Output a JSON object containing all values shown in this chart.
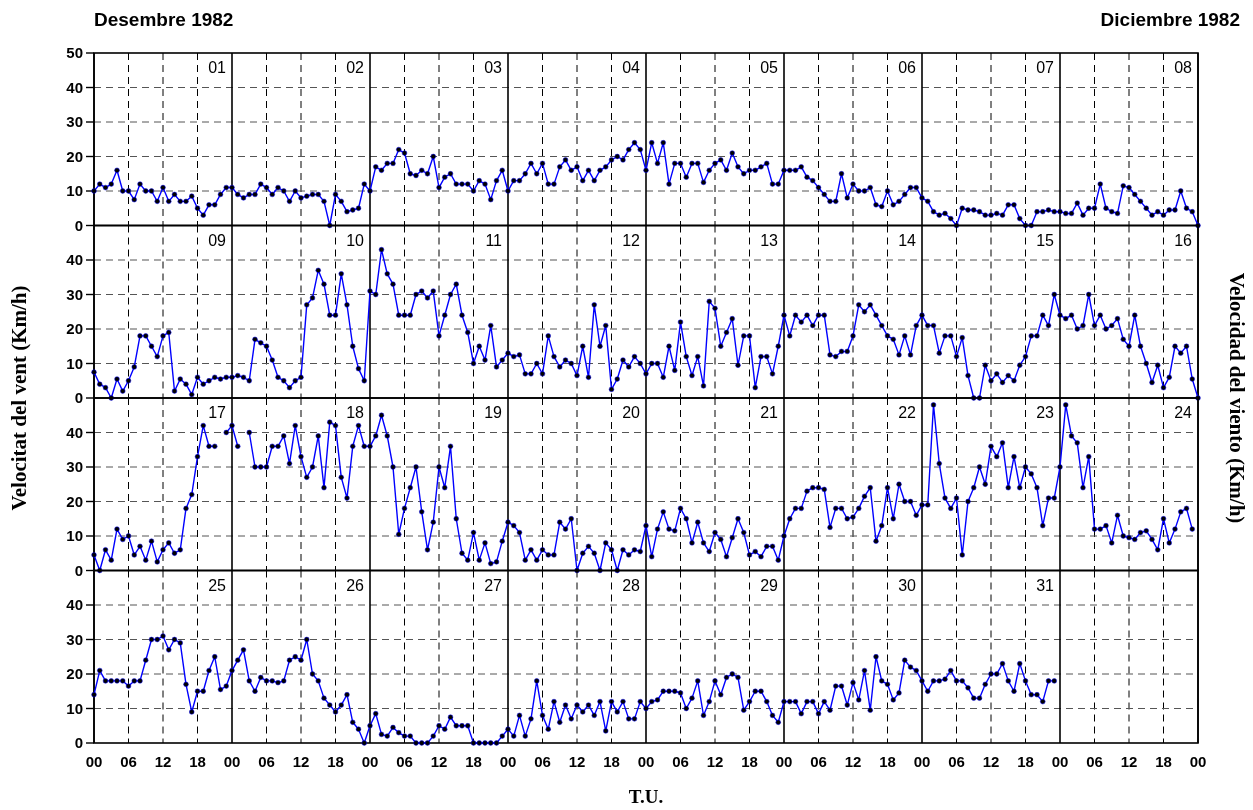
{
  "chart_data": [
    {
      "type": "line",
      "title": "Desembre 1982",
      "subtitle": "Diciembre 1982",
      "ylabel": "Velocitat del vent (Km/h)",
      "y2label": "Velocidad del viento (Km/h)",
      "annotations": [
        "01",
        "02",
        "03",
        "04",
        "05",
        "06",
        "07",
        "08"
      ],
      "xlim": [
        0,
        192
      ],
      "ylim": [
        0,
        50
      ],
      "yticks": [
        0,
        10,
        20,
        30,
        40,
        50
      ],
      "xticks": [
        0,
        6,
        12,
        18,
        24,
        30,
        36,
        42,
        48,
        54,
        60,
        66,
        72,
        78,
        84,
        90,
        96,
        102,
        108,
        114,
        120,
        126,
        132,
        138,
        144,
        150,
        156,
        162,
        168,
        174,
        180,
        186,
        192
      ],
      "tick_labels": "y",
      "grid": true,
      "marker": "circle",
      "line_style": "solid",
      "series": [
        {
          "color": "#0000ff",
          "x": [
            0,
            1,
            2,
            3,
            4,
            5,
            6,
            7,
            8,
            9,
            10,
            11,
            12,
            13,
            14,
            15,
            16,
            17,
            18,
            19,
            20,
            21,
            22,
            23,
            24,
            25,
            26,
            27,
            28,
            29,
            30,
            31,
            32,
            33,
            34,
            35,
            36,
            37,
            38,
            39,
            40,
            41,
            42,
            43,
            44,
            45,
            46,
            47,
            48,
            49,
            50,
            51,
            52,
            53,
            54,
            55,
            56,
            57,
            58,
            59,
            60,
            61,
            62,
            63,
            64,
            65,
            66,
            67,
            68,
            69,
            70,
            71,
            72,
            73,
            74,
            75,
            76,
            77,
            78,
            79,
            80,
            81,
            82,
            83,
            84,
            85,
            86,
            87,
            88,
            89,
            90,
            91,
            92,
            93,
            94,
            95,
            96,
            97,
            98,
            99,
            100,
            101,
            102,
            103,
            104,
            105,
            106,
            107,
            108,
            109,
            110,
            111,
            112,
            113,
            114,
            115,
            116,
            117,
            118,
            119,
            120,
            121,
            122,
            123,
            124,
            125,
            126,
            127,
            128,
            129,
            130,
            131,
            132,
            133,
            134,
            135,
            136,
            137,
            138,
            139,
            140,
            141,
            142,
            143,
            144,
            145,
            146,
            147,
            148,
            149,
            150,
            151,
            152,
            153,
            154,
            155,
            156,
            157,
            158,
            159,
            160,
            161,
            162,
            163,
            164,
            165,
            166,
            167,
            168,
            169,
            170,
            171,
            172,
            173,
            174,
            175,
            176,
            177,
            178,
            179,
            180,
            181,
            182,
            183,
            184,
            185,
            186,
            187,
            188,
            189,
            190,
            191,
            192
          ],
          "values": [
            10,
            12,
            11,
            12,
            16,
            10,
            10,
            7.5,
            12,
            10,
            10,
            7,
            11,
            7,
            9,
            7,
            7,
            8.5,
            5,
            3,
            6,
            6,
            9,
            11,
            11,
            9,
            8,
            9,
            9,
            12,
            11,
            9,
            11,
            10,
            7,
            10,
            8,
            8.5,
            9,
            9,
            7,
            0,
            9,
            7,
            4,
            4.5,
            5,
            12,
            10,
            17,
            16,
            18,
            18,
            22,
            21,
            15,
            14.5,
            16,
            15,
            20,
            11,
            14,
            15,
            12,
            12,
            12,
            10,
            13,
            12,
            7.5,
            13,
            16,
            10,
            13,
            13,
            15,
            18,
            15,
            18,
            12,
            12,
            17,
            19,
            16,
            17,
            13,
            16,
            13,
            16,
            17,
            19,
            20,
            19,
            22,
            24,
            22,
            16,
            24,
            18,
            24,
            12,
            18,
            18,
            14,
            18,
            18,
            12.5,
            16,
            18,
            19,
            16,
            21,
            17,
            15,
            16,
            16,
            17,
            18,
            12,
            12,
            16,
            16,
            16,
            17,
            14,
            13,
            11,
            9,
            7,
            7,
            15,
            8,
            12,
            10,
            10,
            11,
            6,
            5.5,
            10,
            6,
            7,
            9,
            11,
            11,
            8,
            7,
            4,
            3,
            3.5,
            2,
            0,
            5,
            4.5,
            4.5,
            4,
            3,
            3,
            3.5,
            3,
            6,
            6,
            2,
            0,
            0,
            4,
            4,
            4.5,
            4,
            4,
            3.5,
            3.5,
            6.5,
            3,
            5,
            5,
            12,
            5,
            4,
            3.5,
            11.5,
            11,
            9,
            7,
            5,
            3,
            4,
            3,
            4.5,
            4.5,
            10,
            5,
            4,
            0
          ]
        }
      ]
    },
    {
      "type": "line",
      "annotations": [
        "09",
        "10",
        "11",
        "12",
        "13",
        "14",
        "15",
        "16"
      ],
      "xlim": [
        0,
        192
      ],
      "ylim": [
        0,
        50
      ],
      "yticks": [
        0,
        10,
        20,
        30,
        40
      ],
      "xticks": [
        0,
        6,
        12,
        18,
        24,
        30,
        36,
        42,
        48,
        54,
        60,
        66,
        72,
        78,
        84,
        90,
        96,
        102,
        108,
        114,
        120,
        126,
        132,
        138,
        144,
        150,
        156,
        162,
        168,
        174,
        180,
        186,
        192
      ],
      "tick_labels": "y",
      "grid": true,
      "marker": "circle",
      "line_style": "solid",
      "series": [
        {
          "color": "#0000ff",
          "x": [
            0,
            1,
            2,
            3,
            4,
            5,
            6,
            7,
            8,
            9,
            10,
            11,
            12,
            13,
            14,
            15,
            16,
            17,
            18,
            19,
            20,
            21,
            22,
            23,
            24,
            25,
            26,
            27,
            28,
            29,
            30,
            31,
            32,
            33,
            34,
            35,
            36,
            37,
            38,
            39,
            40,
            41,
            42,
            43,
            44,
            45,
            46,
            47,
            48,
            49,
            50,
            51,
            52,
            53,
            54,
            55,
            56,
            57,
            58,
            59,
            60,
            61,
            62,
            63,
            64,
            65,
            66,
            67,
            68,
            69,
            70,
            71,
            72,
            73,
            74,
            75,
            76,
            77,
            78,
            79,
            80,
            81,
            82,
            83,
            84,
            85,
            86,
            87,
            88,
            89,
            90,
            91,
            92,
            93,
            94,
            95,
            96,
            97,
            98,
            99,
            100,
            101,
            102,
            103,
            104,
            105,
            106,
            107,
            108,
            109,
            110,
            111,
            112,
            113,
            114,
            115,
            116,
            117,
            118,
            119,
            120,
            121,
            122,
            123,
            124,
            125,
            126,
            127,
            128,
            129,
            130,
            131,
            132,
            133,
            134,
            135,
            136,
            137,
            138,
            139,
            140,
            141,
            142,
            143,
            144,
            145,
            146,
            147,
            148,
            149,
            150,
            151,
            152,
            153,
            154,
            155,
            156,
            157,
            158,
            159,
            160,
            161,
            162,
            163,
            164,
            165,
            166,
            167,
            168,
            169,
            170,
            171,
            172,
            173,
            174,
            175,
            176,
            177,
            178,
            179,
            180,
            181,
            182,
            183,
            184,
            185,
            186,
            187,
            188,
            189,
            190,
            191,
            192
          ],
          "values": [
            7.5,
            4,
            3,
            0,
            5.5,
            2,
            5,
            9,
            18,
            18,
            15,
            12,
            18,
            19,
            2,
            5.5,
            4,
            1,
            6,
            4,
            5,
            6,
            5.5,
            6,
            6,
            6.5,
            6,
            5,
            17,
            16,
            15,
            11,
            6,
            5,
            3,
            5,
            6,
            27,
            29,
            37,
            33,
            24,
            24,
            36,
            27,
            15,
            8.5,
            5,
            31,
            30,
            43,
            36,
            33,
            24,
            24,
            24,
            30,
            31,
            29,
            31,
            18,
            24,
            30,
            33,
            24,
            19,
            10,
            15,
            11,
            21,
            9,
            11,
            13,
            12,
            12.5,
            7,
            7,
            10,
            7,
            18,
            12,
            9,
            11,
            10,
            6.5,
            15,
            6,
            27,
            15,
            21,
            2.5,
            5.5,
            11,
            9,
            12,
            10,
            7,
            10,
            10,
            6,
            15,
            8,
            22,
            12,
            6.5,
            12,
            3.5,
            28,
            26,
            15,
            19,
            23,
            9.5,
            18,
            18,
            3,
            12,
            12,
            7,
            15,
            24,
            18,
            24,
            22,
            24,
            21,
            24,
            24,
            12.5,
            12,
            13.5,
            13.5,
            18,
            27,
            25,
            27,
            24,
            21,
            18,
            17,
            12.5,
            18,
            12.5,
            21,
            24,
            21,
            21,
            13,
            18,
            18,
            12,
            17.5,
            6.5,
            0,
            0,
            9.5,
            5,
            7,
            4.5,
            6.5,
            5,
            9.5,
            12,
            18,
            18,
            24,
            21,
            30,
            24,
            23,
            24,
            20,
            21,
            30,
            21,
            24,
            20,
            21,
            23,
            17,
            15,
            24,
            15,
            10,
            4.5,
            9.5,
            3,
            6,
            15,
            13,
            15,
            5.5,
            0
          ]
        }
      ]
    },
    {
      "type": "line",
      "annotations": [
        "17",
        "18",
        "19",
        "20",
        "21",
        "22",
        "23",
        "24"
      ],
      "xlim": [
        0,
        192
      ],
      "ylim": [
        0,
        50
      ],
      "yticks": [
        0,
        10,
        20,
        30,
        40
      ],
      "xticks": [
        0,
        6,
        12,
        18,
        24,
        30,
        36,
        42,
        48,
        54,
        60,
        66,
        72,
        78,
        84,
        90,
        96,
        102,
        108,
        114,
        120,
        126,
        132,
        138,
        144,
        150,
        156,
        162,
        168,
        174,
        180,
        186,
        192
      ],
      "tick_labels": "y",
      "grid": true,
      "marker": "circle",
      "line_style": "solid",
      "series": [
        {
          "color": "#0000ff",
          "x": [
            0,
            1,
            2,
            3,
            4,
            5,
            6,
            7,
            8,
            9,
            10,
            11,
            12,
            13,
            14,
            15,
            16,
            17,
            18,
            19,
            20,
            21,
            22,
            23,
            24,
            25,
            26,
            27,
            28,
            29,
            30,
            31,
            32,
            33,
            34,
            35,
            36,
            37,
            38,
            39,
            40,
            41,
            42,
            43,
            44,
            45,
            46,
            47,
            48,
            49,
            50,
            51,
            52,
            53,
            54,
            55,
            56,
            57,
            58,
            59,
            60,
            61,
            62,
            63,
            64,
            65,
            66,
            67,
            68,
            69,
            70,
            71,
            72,
            73,
            74,
            75,
            76,
            77,
            78,
            79,
            80,
            81,
            82,
            83,
            84,
            85,
            86,
            87,
            88,
            89,
            90,
            91,
            92,
            93,
            94,
            95,
            96,
            97,
            98,
            99,
            100,
            101,
            102,
            103,
            104,
            105,
            106,
            107,
            108,
            109,
            110,
            111,
            112,
            113,
            114,
            115,
            116,
            117,
            118,
            119,
            120,
            121,
            122,
            123,
            124,
            125,
            126,
            127,
            128,
            129,
            130,
            131,
            132,
            133,
            134,
            135,
            136,
            137,
            138,
            139,
            140,
            141,
            142,
            143,
            144,
            145,
            146,
            147,
            148,
            149,
            150,
            151,
            152,
            153,
            154,
            155,
            156,
            157,
            158,
            159,
            160,
            161,
            162,
            163,
            164,
            165,
            166,
            167,
            168,
            169,
            170,
            171,
            172,
            173,
            174,
            175,
            176,
            177,
            178,
            179,
            180,
            181,
            182,
            183,
            184,
            185,
            186,
            187,
            188,
            189,
            190,
            191
          ],
          "values": [
            4.5,
            0,
            6,
            3,
            12,
            9,
            10,
            4.5,
            7,
            3,
            8.5,
            2.5,
            6,
            8,
            5,
            6,
            18,
            22,
            33,
            42,
            36,
            36,
            null,
            40,
            42,
            36,
            null,
            40,
            30,
            30,
            30,
            36,
            36,
            39,
            31,
            42,
            33,
            27,
            30,
            39,
            24,
            43,
            42,
            27,
            21,
            36,
            42,
            36,
            36,
            39,
            45,
            39,
            30,
            10.5,
            18,
            24,
            30,
            17,
            6,
            14,
            30,
            24,
            36,
            15,
            5,
            3,
            11,
            3,
            8,
            2,
            2.5,
            8.5,
            14,
            13,
            11,
            3,
            6,
            3,
            6,
            4.5,
            4.5,
            14,
            12,
            15,
            0,
            5,
            7,
            5,
            0,
            8,
            6,
            0,
            6,
            4.5,
            6,
            5.5,
            13,
            4,
            12,
            17,
            12,
            11.5,
            18,
            15,
            8,
            14,
            8,
            5.5,
            11,
            9,
            4,
            9.5,
            15,
            11,
            4.5,
            5.5,
            4,
            7,
            7,
            3,
            10,
            15,
            18,
            18,
            23,
            24,
            24,
            23.5,
            12.5,
            18,
            18,
            15,
            15.5,
            18,
            21.5,
            24,
            8.5,
            13,
            24,
            15,
            25,
            20,
            20,
            16,
            19,
            19,
            48,
            31,
            21,
            18,
            21,
            4.5,
            20,
            24,
            30,
            25,
            36,
            33,
            37,
            24,
            33,
            24,
            30,
            28,
            24,
            13,
            21,
            21,
            30,
            48,
            39,
            37,
            24,
            33,
            12,
            12,
            13,
            8,
            16,
            10,
            9.5,
            9,
            11,
            11.5,
            9,
            6,
            15,
            8,
            12,
            17,
            18,
            12
          ]
        }
      ]
    },
    {
      "type": "line",
      "xlabel": "T.U.",
      "annotations": [
        "25",
        "26",
        "27",
        "28",
        "29",
        "30",
        "31"
      ],
      "xlim": [
        0,
        192
      ],
      "ylim": [
        0,
        50
      ],
      "yticks": [
        0,
        10,
        20,
        30,
        40
      ],
      "xticks": [
        {
          "value": 0,
          "label": "00"
        },
        {
          "value": 6,
          "label": "06"
        },
        {
          "value": 12,
          "label": "12"
        },
        {
          "value": 18,
          "label": "18"
        },
        {
          "value": 24,
          "label": "00"
        },
        {
          "value": 30,
          "label": "06"
        },
        {
          "value": 36,
          "label": "12"
        },
        {
          "value": 42,
          "label": "18"
        },
        {
          "value": 48,
          "label": "00"
        },
        {
          "value": 54,
          "label": "06"
        },
        {
          "value": 60,
          "label": "12"
        },
        {
          "value": 66,
          "label": "18"
        },
        {
          "value": 72,
          "label": "00"
        },
        {
          "value": 78,
          "label": "06"
        },
        {
          "value": 84,
          "label": "12"
        },
        {
          "value": 90,
          "label": "18"
        },
        {
          "value": 96,
          "label": "00"
        },
        {
          "value": 102,
          "label": "06"
        },
        {
          "value": 108,
          "label": "12"
        },
        {
          "value": 114,
          "label": "18"
        },
        {
          "value": 120,
          "label": "00"
        },
        {
          "value": 126,
          "label": "06"
        },
        {
          "value": 132,
          "label": "12"
        },
        {
          "value": 138,
          "label": "18"
        },
        {
          "value": 144,
          "label": "00"
        },
        {
          "value": 150,
          "label": "06"
        },
        {
          "value": 156,
          "label": "12"
        },
        {
          "value": 162,
          "label": "18"
        },
        {
          "value": 168,
          "label": "00"
        },
        {
          "value": 174,
          "label": "06"
        },
        {
          "value": 180,
          "label": "12"
        },
        {
          "value": 186,
          "label": "18"
        },
        {
          "value": 192,
          "label": "00"
        }
      ],
      "grid": true,
      "marker": "circle",
      "line_style": "solid",
      "series": [
        {
          "color": "#0000ff",
          "x": [
            0,
            1,
            2,
            3,
            4,
            5,
            6,
            7,
            8,
            9,
            10,
            11,
            12,
            13,
            14,
            15,
            16,
            17,
            18,
            19,
            20,
            21,
            22,
            23,
            24,
            25,
            26,
            27,
            28,
            29,
            30,
            31,
            32,
            33,
            34,
            35,
            36,
            37,
            38,
            39,
            40,
            41,
            42,
            43,
            44,
            45,
            46,
            47,
            48,
            49,
            50,
            51,
            52,
            53,
            54,
            55,
            56,
            57,
            58,
            59,
            60,
            61,
            62,
            63,
            64,
            65,
            66,
            67,
            68,
            69,
            70,
            71,
            72,
            73,
            74,
            75,
            76,
            77,
            78,
            79,
            80,
            81,
            82,
            83,
            84,
            85,
            86,
            87,
            88,
            89,
            90,
            91,
            92,
            93,
            94,
            95,
            96,
            97,
            98,
            99,
            100,
            101,
            102,
            103,
            104,
            105,
            106,
            107,
            108,
            109,
            110,
            111,
            112,
            113,
            114,
            115,
            116,
            117,
            118,
            119,
            120,
            121,
            122,
            123,
            124,
            125,
            126,
            127,
            128,
            129,
            130,
            131,
            132,
            133,
            134,
            135,
            136,
            137,
            138,
            139,
            140,
            141,
            142,
            143,
            144,
            145,
            146,
            147,
            148,
            149,
            150,
            151,
            152,
            153,
            154,
            155,
            156,
            157,
            158,
            159,
            160,
            161,
            162,
            163,
            164,
            165,
            166,
            167
          ],
          "values": [
            14,
            21,
            18,
            18,
            18,
            18,
            16.5,
            18,
            18,
            24,
            30,
            30,
            31,
            27,
            30,
            29,
            17,
            9,
            15,
            15,
            21,
            25,
            15.5,
            16.5,
            21,
            24,
            27,
            18,
            15,
            19,
            18,
            18,
            17.5,
            18,
            24,
            25,
            24,
            30,
            20,
            18,
            13,
            11,
            9,
            11,
            14,
            6,
            4,
            0,
            5,
            8.5,
            2.5,
            2,
            4.5,
            3,
            2,
            2,
            0,
            0,
            0,
            2,
            5,
            4,
            7.5,
            5,
            5,
            5,
            0,
            0,
            0,
            0,
            0,
            2,
            4,
            2,
            8,
            2,
            7,
            18,
            8,
            4,
            12,
            6,
            11,
            7,
            11,
            9,
            11,
            8,
            12,
            3.5,
            12,
            9,
            12,
            7,
            7,
            12,
            10,
            12,
            12.5,
            15,
            15,
            15,
            14.5,
            10,
            13,
            18,
            8,
            12,
            18,
            14,
            19,
            20,
            19,
            9.5,
            12,
            15,
            15,
            12,
            8,
            6,
            12,
            12,
            12,
            8.5,
            12,
            12,
            8.5,
            12,
            9.5,
            16.5,
            16.5,
            11,
            17.5,
            12.5,
            21,
            9.5,
            25,
            18,
            17,
            12.5,
            14.5,
            24,
            22,
            21,
            18,
            15,
            18,
            18,
            18.5,
            21,
            18,
            18,
            16,
            13,
            13,
            17,
            20,
            20,
            23,
            18,
            15,
            23,
            18,
            14,
            14,
            12,
            18,
            18
          ]
        }
      ]
    }
  ]
}
